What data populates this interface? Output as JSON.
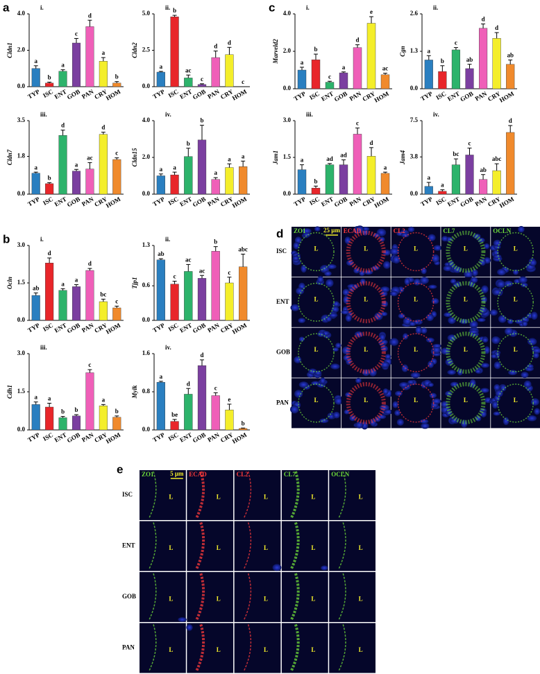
{
  "chart_data": [
    {
      "type": "bar",
      "panel": "a",
      "subtitle": "i.",
      "ylabel": "Cldn1",
      "categories": [
        "TYP",
        "ISC",
        "ENT",
        "GOB",
        "PAN",
        "CRY",
        "HOM"
      ],
      "colors": [
        "#2a7fc0",
        "#e8262a",
        "#2db36b",
        "#7b3fa0",
        "#ef5fb8",
        "#f4ee2a",
        "#f08a2c"
      ],
      "values": [
        1.0,
        0.2,
        0.85,
        2.4,
        3.3,
        1.4,
        0.2
      ],
      "errors": [
        0.15,
        0.05,
        0.08,
        0.25,
        0.35,
        0.2,
        0.08
      ],
      "annotations": [
        "a",
        "b",
        "a",
        "c",
        "d",
        "a",
        "b"
      ],
      "ylim": [
        0,
        4
      ],
      "yticks": [
        {
          "value": 0,
          "label": "0.0"
        },
        {
          "value": 2,
          "label": "2.0"
        },
        {
          "value": 4,
          "label": "4.0"
        }
      ]
    },
    {
      "type": "bar",
      "subtitle": "ii.",
      "ylabel": "Cldn2",
      "categories": [
        "TYP",
        "ISC",
        "ENT",
        "GOB",
        "PAN",
        "CRY",
        "HOM"
      ],
      "colors": [
        "#2a7fc0",
        "#e8262a",
        "#2db36b",
        "#7b3fa0",
        "#ef5fb8",
        "#f4ee2a",
        "#f08a2c"
      ],
      "values": [
        1.0,
        4.8,
        0.6,
        0.15,
        2.0,
        2.2,
        0
      ],
      "errors": [
        0.05,
        0.1,
        0.2,
        0.05,
        0.45,
        0.5,
        0
      ],
      "annotations": [
        "a",
        "b",
        "ac",
        "c",
        "d",
        "d",
        "c"
      ],
      "ylim": [
        0,
        5
      ],
      "yticks": [
        {
          "value": 0,
          "label": "0.0"
        },
        2.5,
        {
          "value": 5,
          "label": "5.0"
        }
      ]
    },
    {
      "type": "bar",
      "subtitle": "iii.",
      "ylabel": "Cldn7",
      "categories": [
        "TYP",
        "ISC",
        "ENT",
        "GOB",
        "PAN",
        "CRY",
        "HOM"
      ],
      "colors": [
        "#2a7fc0",
        "#e8262a",
        "#2db36b",
        "#7b3fa0",
        "#ef5fb8",
        "#f4ee2a",
        "#f08a2c"
      ],
      "values": [
        1.0,
        0.5,
        2.8,
        1.1,
        1.2,
        2.85,
        1.65
      ],
      "errors": [
        0.05,
        0.05,
        0.25,
        0.08,
        0.3,
        0.1,
        0.08
      ],
      "annotations": [
        "a",
        "b",
        "d",
        "a",
        "ac",
        "d",
        "c"
      ],
      "ylim": [
        0,
        3.5
      ],
      "yticks": [
        {
          "value": 0,
          "label": "0.0"
        },
        1.8,
        3.5
      ]
    },
    {
      "type": "bar",
      "subtitle": "iv.",
      "ylabel": "Cldn15",
      "categories": [
        "TYP",
        "ISC",
        "ENT",
        "GOB",
        "PAN",
        "CRY",
        "HOM"
      ],
      "colors": [
        "#2a7fc0",
        "#e8262a",
        "#2db36b",
        "#7b3fa0",
        "#ef5fb8",
        "#f4ee2a",
        "#f08a2c"
      ],
      "values": [
        1.0,
        1.05,
        2.05,
        2.95,
        0.8,
        1.45,
        1.5
      ],
      "errors": [
        0.1,
        0.15,
        0.45,
        0.8,
        0.1,
        0.2,
        0.3
      ],
      "annotations": [
        "a",
        "a",
        "b",
        "b",
        "a",
        "a",
        "a"
      ],
      "ylim": [
        0,
        4
      ],
      "yticks": [
        {
          "value": 0,
          "label": "0.0"
        },
        {
          "value": 2,
          "label": "2.0"
        },
        {
          "value": 4,
          "label": "4.0"
        }
      ]
    },
    {
      "type": "bar",
      "panel": "b",
      "subtitle": "i.",
      "ylabel": "Ocln",
      "categories": [
        "TYP",
        "ISC",
        "ENT",
        "GOB",
        "PAN",
        "CRY",
        "HOM"
      ],
      "colors": [
        "#2a7fc0",
        "#e8262a",
        "#2db36b",
        "#7b3fa0",
        "#ef5fb8",
        "#f4ee2a",
        "#f08a2c"
      ],
      "values": [
        1.0,
        2.3,
        1.2,
        1.35,
        2.0,
        0.75,
        0.5
      ],
      "errors": [
        0.1,
        0.2,
        0.07,
        0.08,
        0.08,
        0.1,
        0.07
      ],
      "annotations": [
        "ab",
        "d",
        "a",
        "a",
        "d",
        "bc",
        "c"
      ],
      "ylim": [
        0,
        3
      ],
      "yticks": [
        {
          "value": 0,
          "label": "0.0"
        },
        1.5,
        {
          "value": 3,
          "label": "3.0"
        }
      ]
    },
    {
      "type": "bar",
      "subtitle": "ii.",
      "ylabel": "Tjp1",
      "categories": [
        "TYP",
        "ISC",
        "ENT",
        "GOB",
        "PAN",
        "CRY",
        "HOM"
      ],
      "colors": [
        "#2a7fc0",
        "#e8262a",
        "#2db36b",
        "#7b3fa0",
        "#ef5fb8",
        "#f4ee2a",
        "#f08a2c"
      ],
      "values": [
        1.05,
        0.63,
        0.85,
        0.73,
        1.2,
        0.65,
        0.93
      ],
      "errors": [
        0.02,
        0.05,
        0.12,
        0.05,
        0.08,
        0.1,
        0.22
      ],
      "annotations": [
        "ab",
        "c",
        "ac",
        "ac",
        "b",
        "c",
        "abc"
      ],
      "ylim": [
        0,
        1.3
      ],
      "yticks": [
        {
          "value": 0,
          "label": "0.0"
        },
        0.6,
        1.3
      ]
    },
    {
      "type": "bar",
      "subtitle": "iii.",
      "ylabel": "Cdh1",
      "categories": [
        "TYP",
        "ISC",
        "ENT",
        "GOB",
        "PAN",
        "CRY",
        "HOM"
      ],
      "colors": [
        "#2a7fc0",
        "#e8262a",
        "#2db36b",
        "#7b3fa0",
        "#ef5fb8",
        "#f4ee2a",
        "#f08a2c"
      ],
      "values": [
        1.0,
        0.9,
        0.48,
        0.55,
        2.25,
        0.95,
        0.5
      ],
      "errors": [
        0.1,
        0.15,
        0.05,
        0.05,
        0.12,
        0.05,
        0.05
      ],
      "annotations": [
        "a",
        "a",
        "b",
        "b",
        "c",
        "a",
        "b"
      ],
      "ylim": [
        0,
        3
      ],
      "yticks": [
        {
          "value": 0,
          "label": "0.0"
        },
        1.5,
        {
          "value": 3,
          "label": "3.0"
        }
      ]
    },
    {
      "type": "bar",
      "subtitle": "iv.",
      "ylabel": "Mylk",
      "categories": [
        "TYP",
        "ISC",
        "ENT",
        "GOB",
        "PAN",
        "CRY",
        "HOM"
      ],
      "colors": [
        "#2a7fc0",
        "#e8262a",
        "#2db36b",
        "#7b3fa0",
        "#ef5fb8",
        "#f4ee2a",
        "#f08a2c"
      ],
      "values": [
        1.0,
        0.18,
        0.75,
        1.35,
        0.72,
        0.42,
        0.03
      ],
      "errors": [
        0.02,
        0.04,
        0.12,
        0.12,
        0.06,
        0.12,
        0.01
      ],
      "annotations": [
        "a",
        "be",
        "d",
        "d",
        "c",
        "e",
        "b"
      ],
      "ylim": [
        0,
        1.6
      ],
      "yticks": [
        {
          "value": 0,
          "label": "0.0"
        },
        0.8,
        1.6
      ]
    },
    {
      "type": "bar",
      "panel": "c",
      "subtitle": "i.",
      "ylabel": "Marveld2",
      "categories": [
        "TYP",
        "ISC",
        "ENT",
        "GOB",
        "PAN",
        "CRY",
        "HOM"
      ],
      "colors": [
        "#2a7fc0",
        "#e8262a",
        "#2db36b",
        "#7b3fa0",
        "#ef5fb8",
        "#f4ee2a",
        "#f08a2c"
      ],
      "values": [
        1.0,
        1.55,
        0.35,
        0.85,
        2.2,
        3.5,
        0.75
      ],
      "errors": [
        0.15,
        0.3,
        0.05,
        0.05,
        0.15,
        0.35,
        0.08
      ],
      "annotations": [
        "a",
        "b",
        "c",
        "a",
        "d",
        "e",
        "ac"
      ],
      "ylim": [
        0,
        4
      ],
      "yticks": [
        {
          "value": 0,
          "label": "0.0"
        },
        {
          "value": 2,
          "label": "2.0"
        },
        {
          "value": 4,
          "label": "4.0"
        }
      ]
    },
    {
      "type": "bar",
      "subtitle": "ii.",
      "ylabel": "Cgn",
      "categories": [
        "TYP",
        "ISC",
        "ENT",
        "GOB",
        "PAN",
        "CRY",
        "HOM"
      ],
      "colors": [
        "#2a7fc0",
        "#e8262a",
        "#2db36b",
        "#7b3fa0",
        "#ef5fb8",
        "#f4ee2a",
        "#f08a2c"
      ],
      "values": [
        1.0,
        0.6,
        1.35,
        0.7,
        2.1,
        1.75,
        0.85
      ],
      "errors": [
        0.15,
        0.2,
        0.08,
        0.15,
        0.15,
        0.2,
        0.15
      ],
      "annotations": [
        "a",
        "b",
        "c",
        "ab",
        "d",
        "d",
        "ab"
      ],
      "ylim": [
        0,
        2.6
      ],
      "yticks": [
        {
          "value": 0,
          "label": "0.0"
        },
        1.3,
        2.6
      ]
    },
    {
      "type": "bar",
      "subtitle": "iii.",
      "ylabel": "Jam1",
      "categories": [
        "TYP",
        "ISC",
        "ENT",
        "GOB",
        "PAN",
        "CRY",
        "HOM"
      ],
      "colors": [
        "#2a7fc0",
        "#e8262a",
        "#2db36b",
        "#7b3fa0",
        "#ef5fb8",
        "#f4ee2a",
        "#f08a2c"
      ],
      "values": [
        1.0,
        0.25,
        1.2,
        1.2,
        2.45,
        1.55,
        0.85
      ],
      "errors": [
        0.2,
        0.08,
        0.05,
        0.2,
        0.25,
        0.35,
        0.05
      ],
      "annotations": [
        "a",
        "b",
        "ad",
        "ad",
        "c",
        "d",
        "a"
      ],
      "ylim": [
        0,
        3
      ],
      "yticks": [
        {
          "value": 0,
          "label": "0.0"
        },
        1.5,
        {
          "value": 3,
          "label": "3.0"
        }
      ]
    },
    {
      "type": "bar",
      "subtitle": "iv.",
      "ylabel": "Jam4",
      "categories": [
        "TYP",
        "ISC",
        "ENT",
        "GOB",
        "PAN",
        "CRY",
        "HOM"
      ],
      "colors": [
        "#2a7fc0",
        "#e8262a",
        "#2db36b",
        "#7b3fa0",
        "#ef5fb8",
        "#f4ee2a",
        "#f08a2c"
      ],
      "values": [
        0.8,
        0.3,
        3.0,
        4.0,
        1.5,
        2.4,
        6.3
      ],
      "errors": [
        0.4,
        0.15,
        0.6,
        0.7,
        0.5,
        0.7,
        0.7
      ],
      "annotations": [
        "a",
        "a",
        "bc",
        "c",
        "ab",
        "abc",
        "d"
      ],
      "ylim": [
        0,
        7.5
      ],
      "yticks": [
        {
          "value": 0,
          "label": "0.0"
        },
        3.8,
        7.5
      ]
    }
  ],
  "image_panels": [
    {
      "panel": "d",
      "channels": [
        {
          "name": "ZO1",
          "color": "#6fdc3a"
        },
        {
          "name": "ECAD",
          "color": "#ff3b3b"
        },
        {
          "name": "CL2",
          "color": "#ff3b3b"
        },
        {
          "name": "CL7",
          "color": "#6fdc3a"
        },
        {
          "name": "OCLN",
          "color": "#6fdc3a"
        }
      ],
      "rows": [
        "ISC",
        "ENT",
        "GOB",
        "PAN"
      ],
      "scale_bar": "25 µm",
      "lumen": "L"
    },
    {
      "panel": "e",
      "channels": [
        {
          "name": "ZO1",
          "color": "#6fdc3a"
        },
        {
          "name": "ECAD",
          "color": "#ff3b3b"
        },
        {
          "name": "CL2",
          "color": "#ff3b3b"
        },
        {
          "name": "CL7",
          "color": "#6fdc3a"
        },
        {
          "name": "OCLN",
          "color": "#6fdc3a"
        }
      ],
      "rows": [
        "ISC",
        "ENT",
        "GOB",
        "PAN"
      ],
      "scale_bar": "5 µm",
      "lumen": "L"
    }
  ]
}
